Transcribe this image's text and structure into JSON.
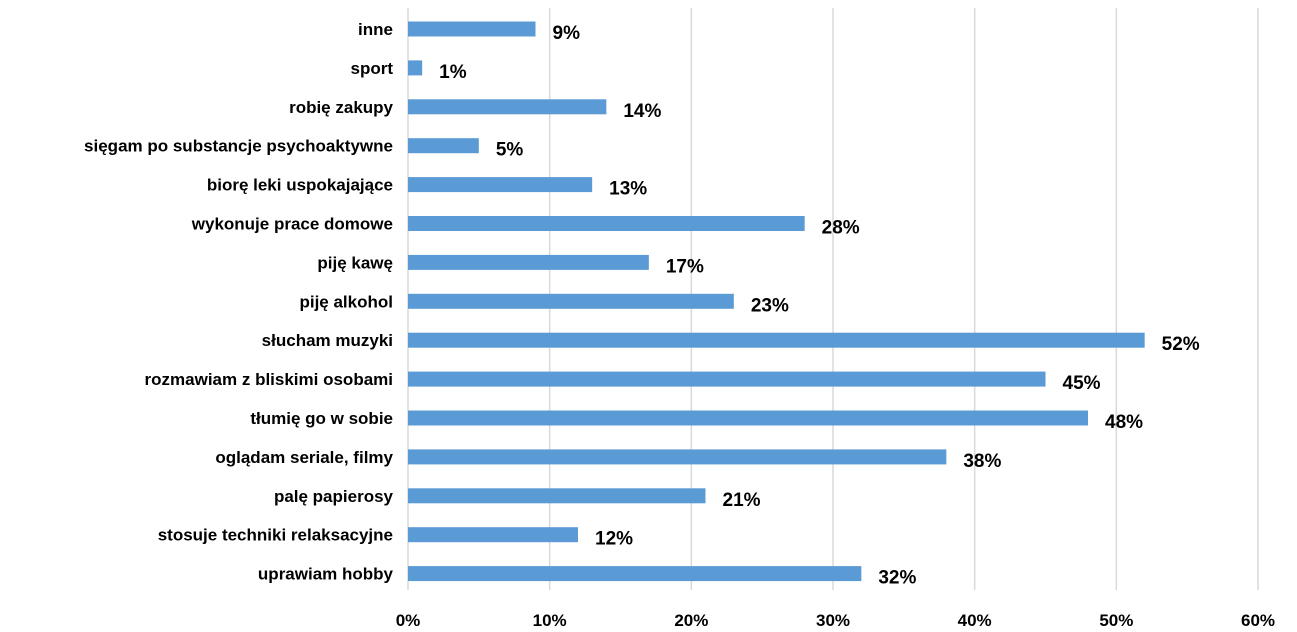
{
  "chart_data": {
    "type": "bar",
    "orientation": "horizontal",
    "categories": [
      "inne",
      "sport",
      "robię zakupy",
      "sięgam po substancje psychoaktywne",
      "biorę leki uspokajające",
      "wykonuje prace domowe",
      "piję kawę",
      "piję alkohol",
      "słucham muzyki",
      "rozmawiam z bliskimi osobami",
      "tłumię go w sobie",
      "oglądam seriale, filmy",
      "palę papierosy",
      "stosuje techniki relaksacyjne",
      "uprawiam hobby"
    ],
    "values": [
      9,
      1,
      14,
      5,
      13,
      28,
      17,
      23,
      52,
      45,
      48,
      38,
      21,
      12,
      32
    ],
    "value_labels": [
      "9%",
      "1%",
      "14%",
      "5%",
      "13%",
      "28%",
      "17%",
      "23%",
      "52%",
      "45%",
      "48%",
      "38%",
      "21%",
      "12%",
      "32%"
    ],
    "x_ticks": [
      0,
      10,
      20,
      30,
      40,
      50,
      60
    ],
    "x_tick_labels": [
      "0%",
      "10%",
      "20%",
      "30%",
      "40%",
      "50%",
      "60%"
    ],
    "xlim": [
      0,
      60
    ],
    "unit": "%",
    "grid": true,
    "legend": false,
    "bar_color": "#5b9bd5",
    "gridline_color": "#d9d9d9"
  }
}
